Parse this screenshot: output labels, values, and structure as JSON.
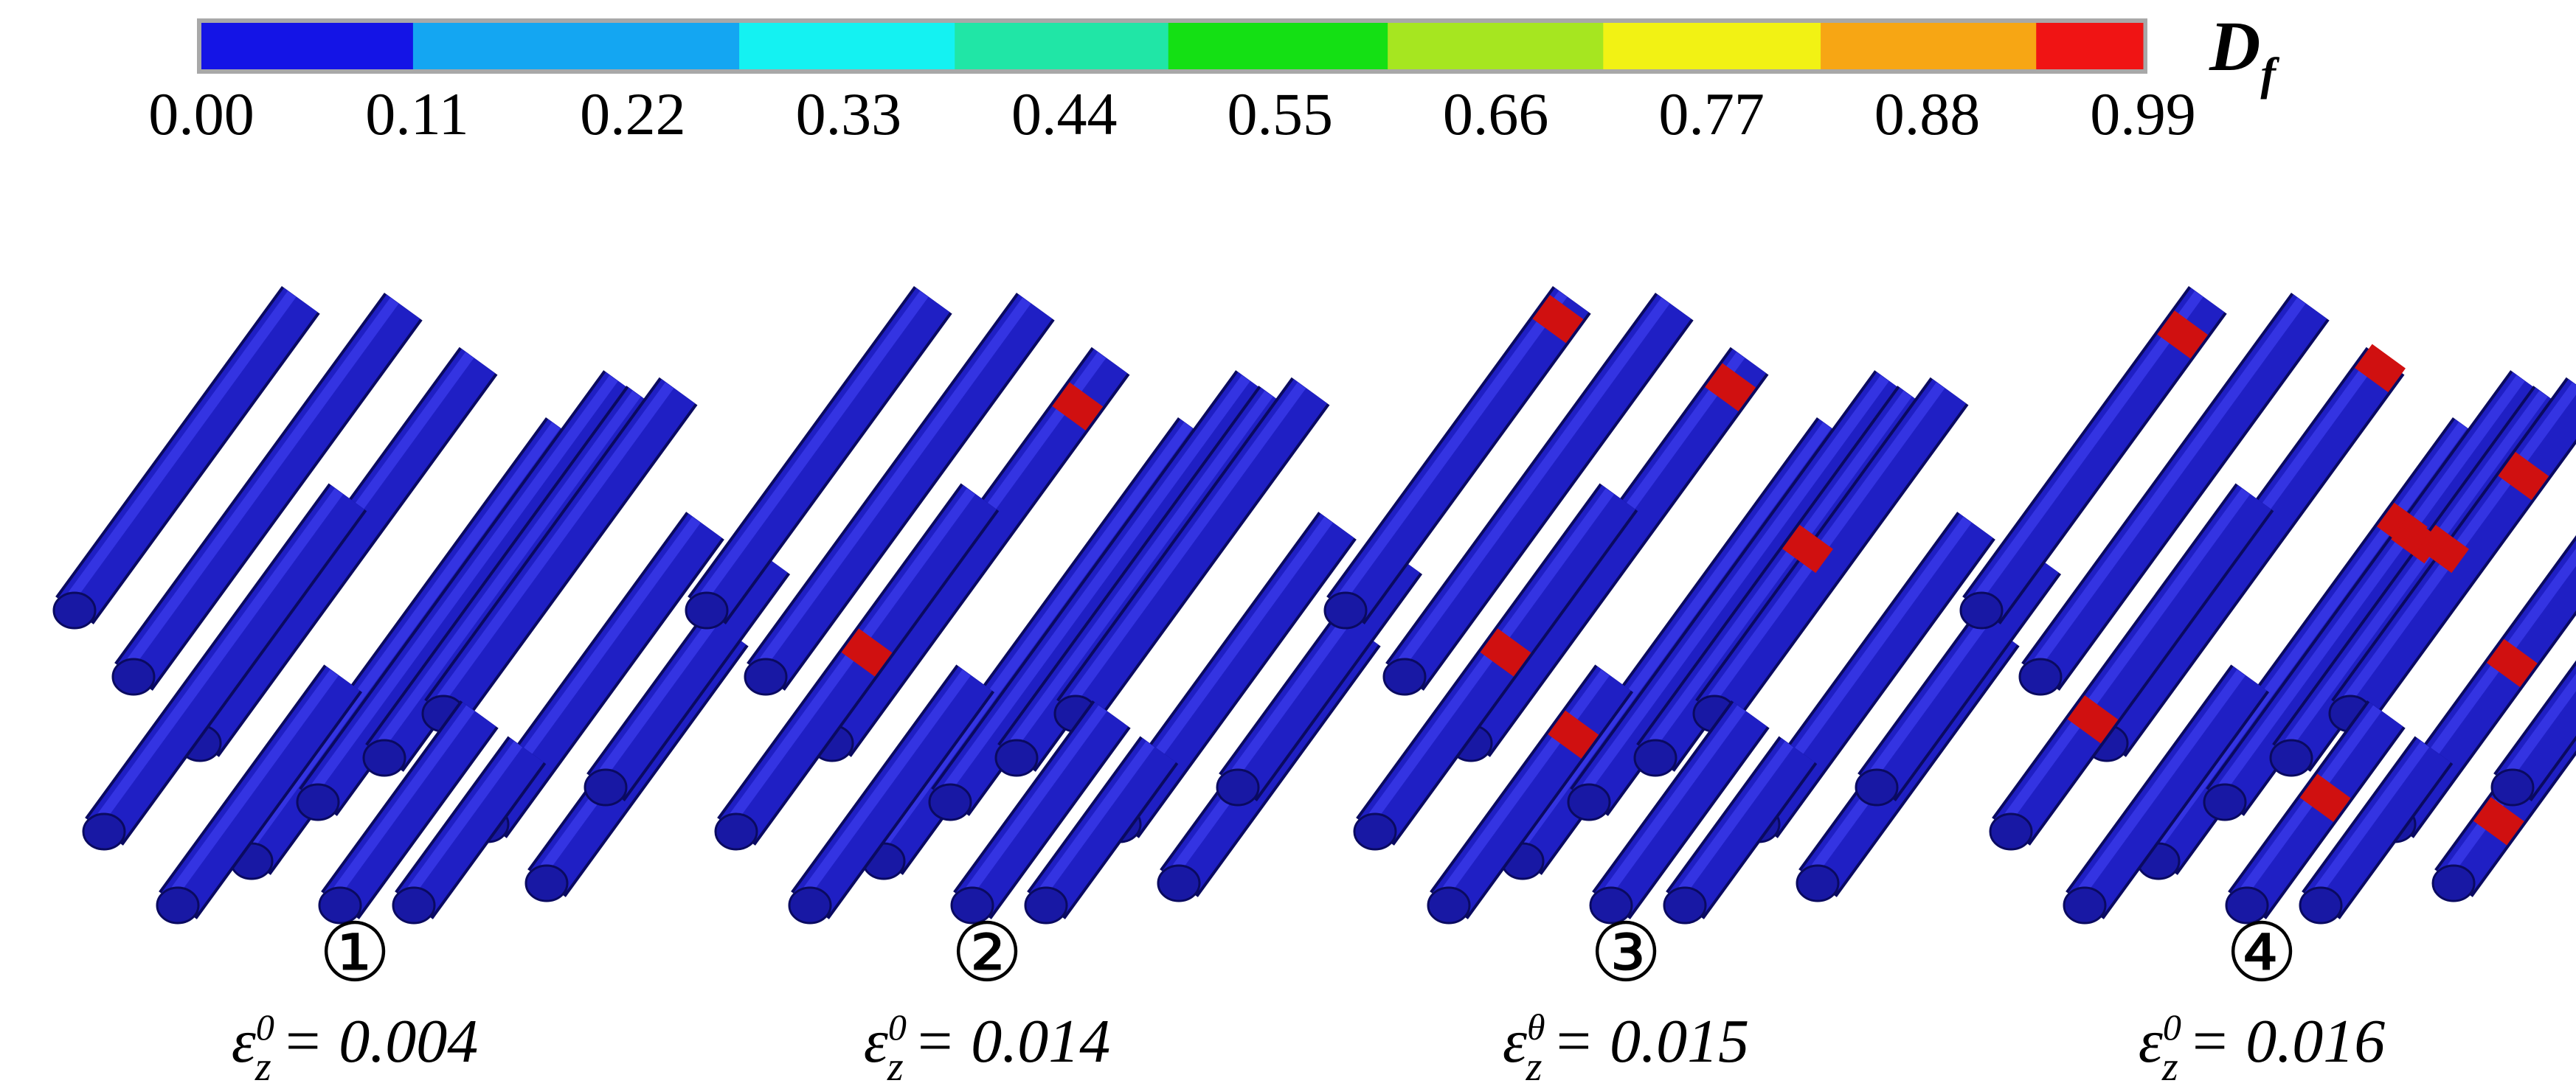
{
  "colorbar": {
    "colors": [
      "#1414e6",
      "#14a6f2",
      "#14f2f2",
      "#20e6a6",
      "#14e014",
      "#a6e620",
      "#f2f214",
      "#f7a614",
      "#f01414"
    ],
    "ticks": [
      "0.00",
      "0.11",
      "0.22",
      "0.33",
      "0.44",
      "0.55",
      "0.66",
      "0.77",
      "0.88",
      "0.99"
    ],
    "label": "D",
    "label_sub": "f"
  },
  "panels": [
    {
      "label": "①",
      "strain": {
        "symbol": "ε",
        "sub": "z",
        "sup": "0",
        "value": "= 0.004"
      }
    },
    {
      "label": "②",
      "strain": {
        "symbol": "ε",
        "sub": "z",
        "sup": "0",
        "value": "= 0.014"
      }
    },
    {
      "label": "③",
      "strain": {
        "symbol": "ε",
        "sub": "z",
        "sup": "θ",
        "value": "= 0.015"
      }
    },
    {
      "label": "④",
      "strain": {
        "symbol": "ε",
        "sub": "z",
        "sup": "0",
        "value": "= 0.016"
      }
    }
  ]
}
